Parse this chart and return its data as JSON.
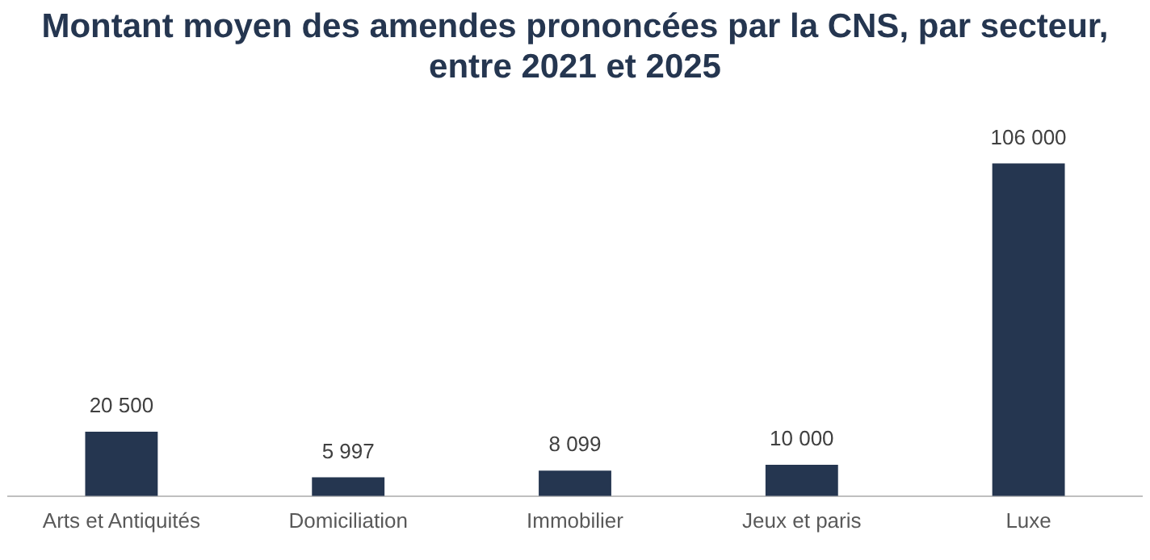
{
  "chart_data": {
    "type": "bar",
    "title": "Montant moyen des amendes prononcées par la CNS, par secteur, entre 2021 et 2025",
    "categories": [
      "Arts et Antiquités",
      "Domiciliation",
      "Immobilier",
      "Jeux et paris",
      "Luxe"
    ],
    "values": [
      20500,
      5997,
      8099,
      10000,
      106000
    ],
    "value_labels": [
      "20 500",
      "5 997",
      "8 099",
      "10 000",
      "106 000"
    ],
    "color": "#253650",
    "grid": false,
    "legend": false
  }
}
